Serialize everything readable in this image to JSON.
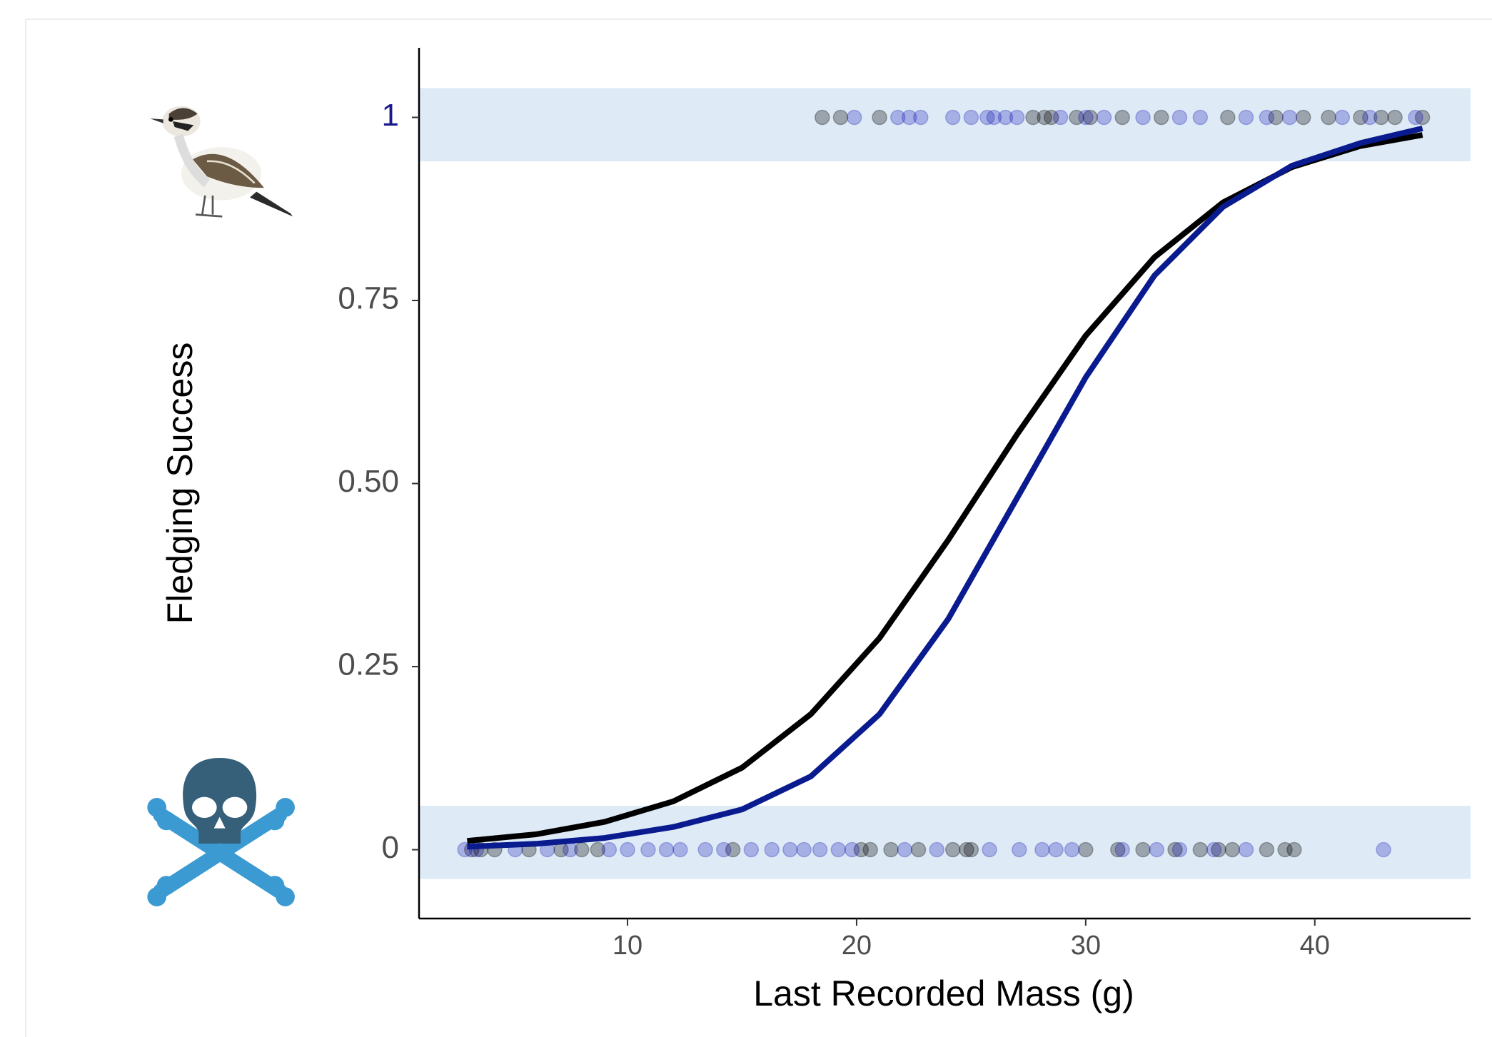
{
  "chart_data": {
    "type": "scatter",
    "x_label": "Last Recorded Mass (g)",
    "y_label": "Fledging Success",
    "xlim": [
      0.9,
      46.8
    ],
    "ylim": [
      -0.094,
      1.095
    ],
    "xticks": [
      10,
      20,
      30,
      40
    ],
    "yticks": [
      0,
      0.25,
      {
        "value": 0.5,
        "label": "0.50"
      },
      0.75,
      1
    ],
    "ytick_colors": [
      "#4d4d4d",
      "#4d4d4d",
      "#4d4d4d",
      "#4d4d4d",
      "#1a1a8c"
    ],
    "grid": false,
    "band_color": "#deebf7",
    "bands": [
      {
        "ymin": -0.04,
        "ymax": 0.06
      },
      {
        "ymin": 0.94,
        "ymax": 1.04
      }
    ],
    "series": [
      {
        "kind": "points",
        "color": "#000000",
        "alpha": 0.3,
        "x": [
          18.5,
          19.3,
          21.0,
          27.7,
          28.2,
          28.5,
          29.6,
          30.2,
          31.6,
          33.3,
          36.2,
          38.3,
          39.5,
          40.6,
          42.0,
          42.9,
          43.5,
          44.7,
          3.2,
          3.6,
          4.2,
          5.7,
          7.1,
          8.0,
          8.7,
          14.6,
          20.2,
          20.6,
          21.5,
          22.7,
          24.2,
          24.8,
          25.0,
          30.0,
          31.4,
          32.5,
          33.9,
          35.0,
          35.8,
          36.4,
          37.9,
          38.7,
          39.1
        ],
        "values": [
          1,
          1,
          1,
          1,
          1,
          1,
          1,
          1,
          1,
          1,
          1,
          1,
          1,
          1,
          1,
          1,
          1,
          1,
          0,
          0,
          0,
          0,
          0,
          0,
          0,
          0,
          0,
          0,
          0,
          0,
          0,
          0,
          0,
          0,
          0,
          0,
          0,
          0,
          0,
          0,
          0,
          0,
          0
        ]
      },
      {
        "kind": "points",
        "color": "#0000aa",
        "alpha": 0.25,
        "x": [
          19.9,
          21.8,
          22.3,
          22.8,
          24.2,
          25.0,
          25.7,
          26.0,
          26.5,
          27.0,
          28.9,
          30.0,
          30.8,
          32.5,
          34.1,
          35.0,
          37.0,
          37.9,
          38.9,
          41.2,
          42.4,
          44.4,
          2.9,
          3.4,
          5.1,
          6.5,
          7.5,
          9.2,
          10.0,
          10.9,
          11.7,
          12.3,
          13.4,
          14.2,
          15.4,
          16.3,
          17.1,
          17.7,
          18.4,
          19.2,
          19.8,
          22.1,
          23.5,
          25.8,
          27.1,
          28.1,
          28.7,
          29.4,
          31.6,
          33.1,
          34.1,
          35.6,
          37.0,
          43.0
        ],
        "values": [
          1,
          1,
          1,
          1,
          1,
          1,
          1,
          1,
          1,
          1,
          1,
          1,
          1,
          1,
          1,
          1,
          1,
          1,
          1,
          1,
          1,
          1,
          0,
          0,
          0,
          0,
          0,
          0,
          0,
          0,
          0,
          0,
          0,
          0,
          0,
          0,
          0,
          0,
          0,
          0,
          0,
          0,
          0,
          0,
          0,
          0,
          0,
          0,
          0,
          0,
          0,
          0,
          0,
          0
        ]
      },
      {
        "kind": "line",
        "color": "#000000",
        "x": [
          3,
          6,
          9,
          12,
          15,
          18,
          21,
          24,
          27,
          30,
          33,
          36,
          39,
          42,
          44.7
        ],
        "values": [
          0.012,
          0.021,
          0.038,
          0.066,
          0.112,
          0.185,
          0.289,
          0.423,
          0.567,
          0.702,
          0.809,
          0.884,
          0.932,
          0.961,
          0.976
        ]
      },
      {
        "kind": "line",
        "color": "#0a1a8f",
        "x": [
          3,
          6,
          9,
          12,
          15,
          18,
          21,
          24,
          27,
          30,
          33,
          36,
          39,
          42,
          44.7
        ],
        "values": [
          0.004,
          0.008,
          0.016,
          0.031,
          0.055,
          0.1,
          0.185,
          0.315,
          0.48,
          0.645,
          0.784,
          0.878,
          0.934,
          0.965,
          0.985
        ]
      }
    ]
  }
}
